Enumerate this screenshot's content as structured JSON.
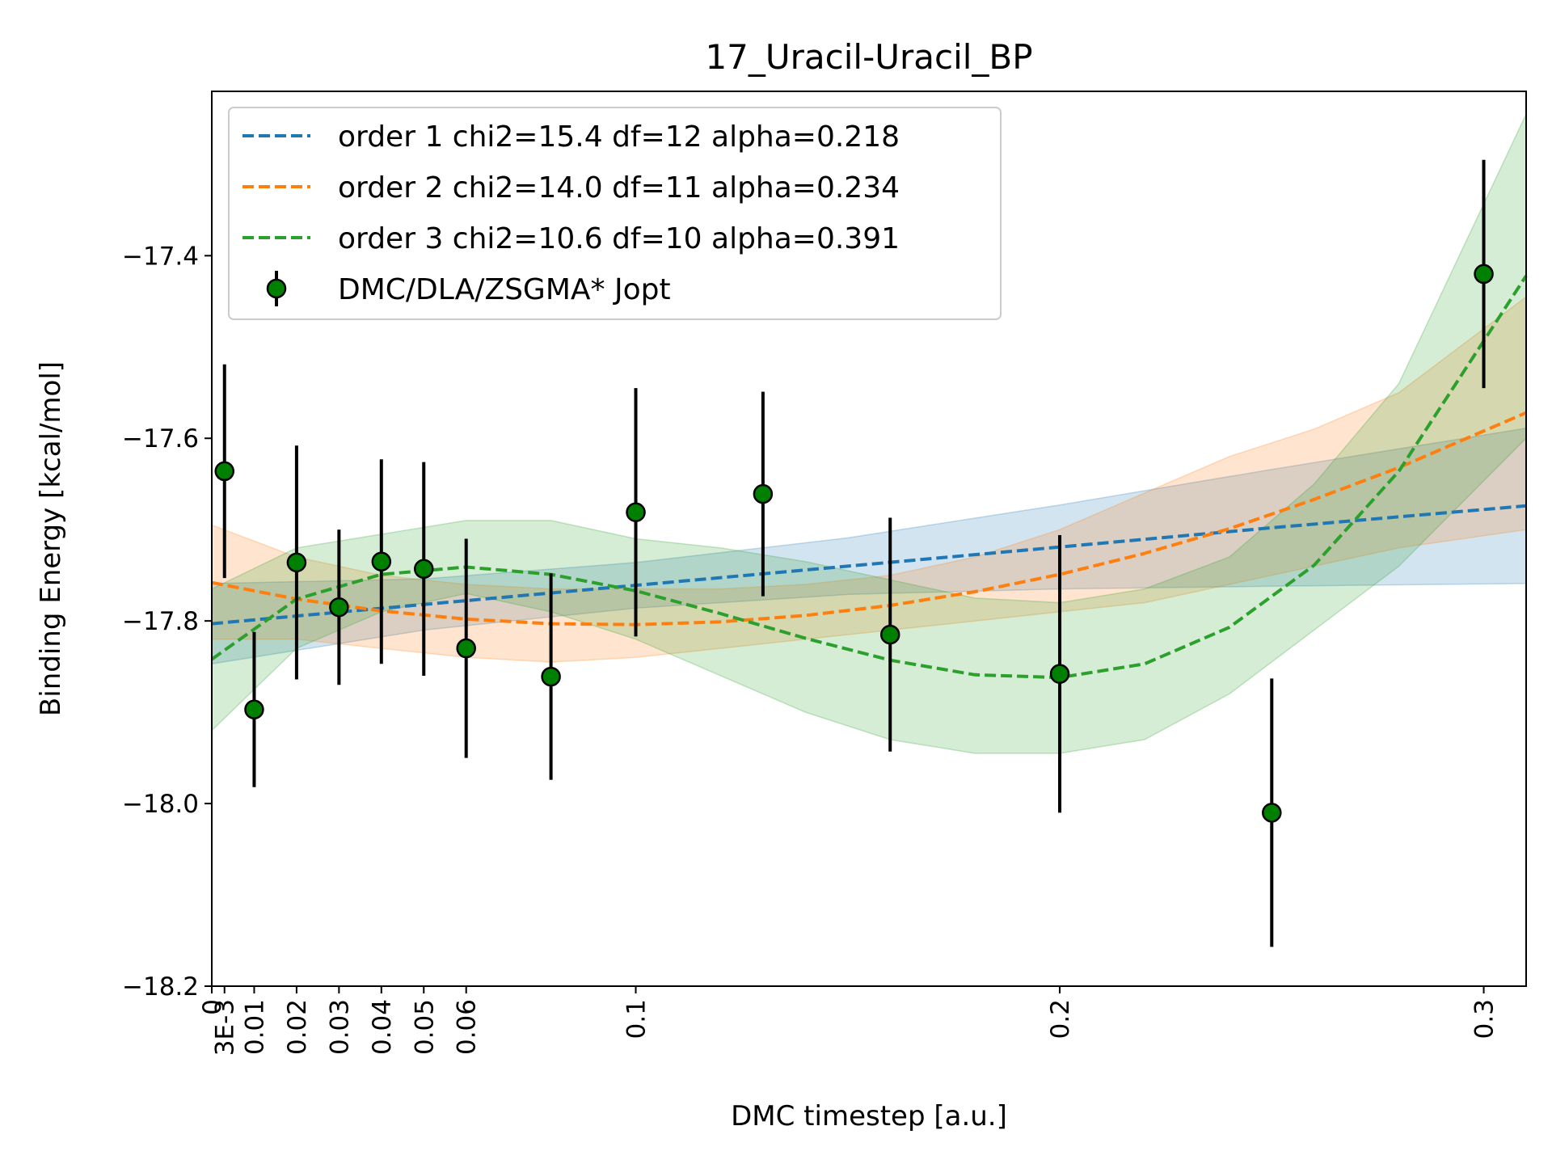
{
  "chart_data": {
    "type": "scatter",
    "title": "17_Uracil-Uracil_BP",
    "xlabel": "DMC timestep [a.u.]",
    "ylabel": "Binding Energy [kcal/mol]",
    "xlim": [
      0,
      0.31
    ],
    "ylim": [
      -18.2,
      -17.22
    ],
    "grid": false,
    "legend_position": "top-left",
    "x_ticks": [
      {
        "value": 0,
        "label": "0"
      },
      {
        "value": 0.003,
        "label": "3E-3"
      },
      {
        "value": 0.01,
        "label": "0.01"
      },
      {
        "value": 0.02,
        "label": "0.02"
      },
      {
        "value": 0.03,
        "label": "0.03"
      },
      {
        "value": 0.04,
        "label": "0.04"
      },
      {
        "value": 0.05,
        "label": "0.05"
      },
      {
        "value": 0.06,
        "label": "0.06"
      },
      {
        "value": 0.1,
        "label": "0.1"
      },
      {
        "value": 0.2,
        "label": "0.2"
      },
      {
        "value": 0.3,
        "label": "0.3"
      }
    ],
    "y_ticks": [
      {
        "value": -17.4,
        "label": "−17.4"
      },
      {
        "value": -17.6,
        "label": "−17.6"
      },
      {
        "value": -17.8,
        "label": "−17.8"
      },
      {
        "value": -18.0,
        "label": "−18.0"
      },
      {
        "value": -18.2,
        "label": "−18.2"
      }
    ],
    "points": {
      "name": "DMC/DLA/ZSGMA* Jopt",
      "color": "#008000",
      "x": [
        0.003,
        0.01,
        0.02,
        0.03,
        0.04,
        0.05,
        0.06,
        0.08,
        0.1,
        0.13,
        0.16,
        0.2,
        0.25,
        0.3
      ],
      "y": [
        -17.636,
        -17.897,
        -17.736,
        -17.785,
        -17.735,
        -17.743,
        -17.83,
        -17.861,
        -17.681,
        -17.661,
        -17.815,
        -17.858,
        -18.01,
        -17.42
      ],
      "yerr": [
        0.117,
        0.085,
        0.128,
        0.085,
        0.112,
        0.117,
        0.12,
        0.113,
        0.136,
        0.112,
        0.128,
        0.152,
        0.147,
        0.125
      ]
    },
    "fits": [
      {
        "name": "order 1 chi2=15.4 df=12 alpha=0.218",
        "color": "#1f77b4",
        "x": [
          0,
          0.05,
          0.1,
          0.15,
          0.2,
          0.25,
          0.31
        ],
        "y": [
          -17.803,
          -17.782,
          -17.761,
          -17.74,
          -17.719,
          -17.698,
          -17.674
        ],
        "band_lower": [
          -17.847,
          -17.81,
          -17.786,
          -17.771,
          -17.765,
          -17.762,
          -17.759
        ],
        "band_upper": [
          -17.759,
          -17.754,
          -17.736,
          -17.709,
          -17.673,
          -17.634,
          -17.589
        ]
      },
      {
        "name": "order 2 chi2=14.0 df=11 alpha=0.234",
        "color": "#ff7f0e",
        "x": [
          0,
          0.02,
          0.04,
          0.06,
          0.08,
          0.1,
          0.12,
          0.14,
          0.16,
          0.18,
          0.2,
          0.22,
          0.24,
          0.26,
          0.28,
          0.31
        ],
        "y": [
          -17.758,
          -17.776,
          -17.789,
          -17.798,
          -17.803,
          -17.804,
          -17.801,
          -17.794,
          -17.783,
          -17.768,
          -17.749,
          -17.726,
          -17.699,
          -17.667,
          -17.632,
          -17.572
        ],
        "band_lower": [
          -17.82,
          -17.82,
          -17.83,
          -17.84,
          -17.845,
          -17.84,
          -17.83,
          -17.82,
          -17.81,
          -17.8,
          -17.79,
          -17.78,
          -17.76,
          -17.74,
          -17.72,
          -17.7
        ],
        "band_upper": [
          -17.695,
          -17.73,
          -17.75,
          -17.76,
          -17.765,
          -17.765,
          -17.765,
          -17.76,
          -17.75,
          -17.73,
          -17.7,
          -17.66,
          -17.62,
          -17.59,
          -17.55,
          -17.445
        ]
      },
      {
        "name": "order 3 chi2=10.6 df=10 alpha=0.391",
        "color": "#2ca02c",
        "x": [
          0,
          0.02,
          0.04,
          0.06,
          0.08,
          0.1,
          0.12,
          0.14,
          0.16,
          0.18,
          0.2,
          0.22,
          0.24,
          0.26,
          0.28,
          0.31
        ],
        "y": [
          -17.842,
          -17.776,
          -17.749,
          -17.741,
          -17.749,
          -17.767,
          -17.792,
          -17.819,
          -17.843,
          -17.859,
          -17.862,
          -17.847,
          -17.807,
          -17.739,
          -17.636,
          -17.422
        ],
        "band_lower": [
          -17.92,
          -17.83,
          -17.79,
          -17.77,
          -17.79,
          -17.82,
          -17.86,
          -17.9,
          -17.93,
          -17.945,
          -17.945,
          -17.93,
          -17.88,
          -17.81,
          -17.74,
          -17.6
        ],
        "band_upper": [
          -17.765,
          -17.72,
          -17.705,
          -17.69,
          -17.69,
          -17.71,
          -17.72,
          -17.735,
          -17.755,
          -17.775,
          -17.78,
          -17.765,
          -17.73,
          -17.65,
          -17.54,
          -17.245
        ]
      }
    ]
  }
}
